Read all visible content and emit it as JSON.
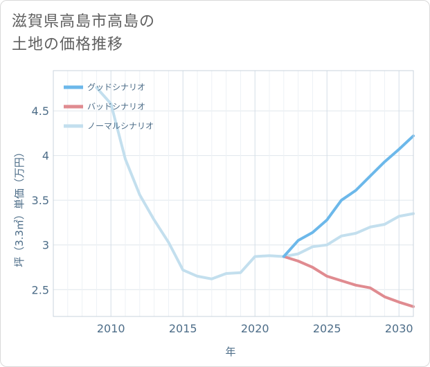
{
  "page": {
    "title_line1": "滋賀県高島市高島の",
    "title_line2": "土地の価格推移"
  },
  "chart_data": {
    "type": "line",
    "title": "滋賀県高島市高島の土地の価格推移",
    "xlabel": "年",
    "ylabel": "坪（3.3㎡）単価（万円）",
    "xlim": [
      2006,
      2031
    ],
    "ylim": [
      2.2,
      4.95
    ],
    "x_ticks": [
      2010,
      2015,
      2020,
      2025,
      2030
    ],
    "y_ticks": [
      2.5,
      3,
      3.5,
      4,
      4.5
    ],
    "x_tick_labels": [
      "2010",
      "2015",
      "2020",
      "2025",
      "2030"
    ],
    "y_tick_labels": [
      "2.5",
      "3",
      "3.5",
      "4",
      "4.5"
    ],
    "grid": true,
    "legend_position": "top-left",
    "series": [
      {
        "name": "グッドシナリオ",
        "color": "#6cb8ea",
        "x": [
          2022,
          2023,
          2024,
          2025,
          2026,
          2027,
          2028,
          2029,
          2030,
          2031
        ],
        "y": [
          2.87,
          3.05,
          3.14,
          3.28,
          3.5,
          3.61,
          3.77,
          3.93,
          4.07,
          4.22
        ]
      },
      {
        "name": "バッドシナリオ",
        "color": "#e08b90",
        "x": [
          2022,
          2023,
          2024,
          2025,
          2026,
          2027,
          2028,
          2029,
          2030,
          2031
        ],
        "y": [
          2.87,
          2.82,
          2.75,
          2.65,
          2.6,
          2.55,
          2.52,
          2.42,
          2.36,
          2.31
        ]
      },
      {
        "name": "ノーマルシナリオ",
        "color": "#c3dfee",
        "x": [
          2009,
          2010,
          2011,
          2012,
          2013,
          2014,
          2015,
          2016,
          2017,
          2018,
          2019,
          2020,
          2021,
          2022,
          2023,
          2024,
          2025,
          2026,
          2027,
          2028,
          2029,
          2030,
          2031
        ],
        "y": [
          4.76,
          4.58,
          3.96,
          3.56,
          3.28,
          3.03,
          2.72,
          2.65,
          2.62,
          2.68,
          2.69,
          2.87,
          2.88,
          2.87,
          2.9,
          2.98,
          3.0,
          3.1,
          3.13,
          3.2,
          3.23,
          3.32,
          3.35
        ]
      }
    ]
  }
}
